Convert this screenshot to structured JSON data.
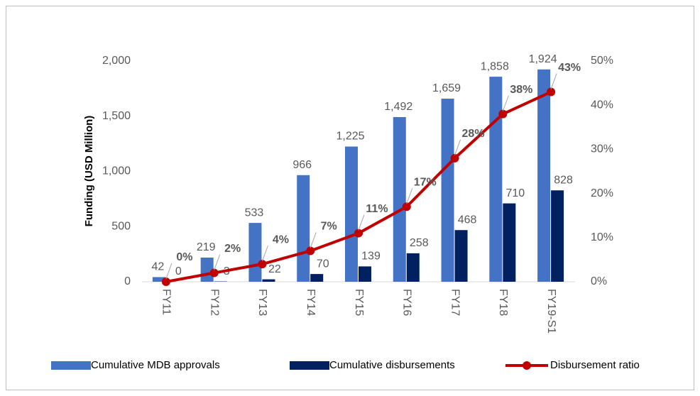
{
  "chart_data": {
    "type": "bar_line",
    "categories": [
      "FY11",
      "FY12",
      "FY13",
      "FY14",
      "FY15",
      "FY16",
      "FY17",
      "FY18",
      "FY19-S1"
    ],
    "y_axis_label": "Funding (USD Million)",
    "ylim": [
      0,
      2000
    ],
    "yticks": [
      0,
      500,
      {
        "value": 1000,
        "label": "1,000"
      },
      {
        "value": 1500,
        "label": "1,500"
      },
      {
        "value": 2000,
        "label": "2,000"
      }
    ],
    "y2lim": [
      0,
      50
    ],
    "y2ticks": [
      {
        "value": 0,
        "label": "0%"
      },
      {
        "value": 10,
        "label": "10%"
      },
      {
        "value": 20,
        "label": "20%"
      },
      {
        "value": 30,
        "label": "30%"
      },
      {
        "value": 40,
        "label": "40%"
      },
      {
        "value": 50,
        "label": "50%"
      }
    ],
    "legend_position": "bottom",
    "series": [
      {
        "name": "Cumulative MDB approvals",
        "kind": "bar",
        "color": "#4472c4",
        "values": [
          42,
          219,
          533,
          966,
          1225,
          1492,
          1659,
          1858,
          1924
        ],
        "value_labels": [
          "42",
          "219",
          "533",
          "966",
          "1,225",
          "1,492",
          "1,659",
          "1,858",
          "1,924"
        ]
      },
      {
        "name": "Cumulative disbursements",
        "kind": "bar",
        "color": "#002060",
        "values": [
          0,
          3,
          22,
          70,
          139,
          258,
          468,
          710,
          828
        ],
        "value_labels": [
          "0",
          "3",
          "22",
          "70",
          "139",
          "258",
          "468",
          "710",
          "828"
        ]
      },
      {
        "name": "Disbursement ratio",
        "kind": "line",
        "axis": "y2",
        "color": "#c00000",
        "values": [
          0,
          2,
          4,
          7,
          11,
          17,
          28,
          38,
          43
        ],
        "value_labels": [
          "0%",
          "2%",
          "4%",
          "7%",
          "11%",
          "17%",
          "28%",
          "38%",
          "43%"
        ]
      }
    ]
  }
}
